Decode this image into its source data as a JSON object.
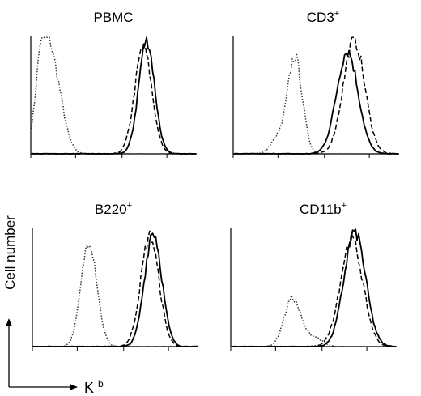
{
  "figure": {
    "ylabel": "Cell number",
    "xlabel_main": "K",
    "xlabel_sup": "b",
    "line_color": "#000000",
    "control_color": "#333333"
  },
  "chart_data": [
    {
      "type": "line",
      "title_main": "PBMC",
      "title_sup": "",
      "series": [
        {
          "style": "dotted",
          "peaks": [
            {
              "center": 0.12,
              "height": 0.82,
              "width": 0.06
            },
            {
              "center": 0.06,
              "height": 0.55,
              "width": 0.035
            }
          ]
        },
        {
          "style": "solid",
          "peaks": [
            {
              "center": 0.7,
              "height": 1.0,
              "width": 0.048
            }
          ]
        },
        {
          "style": "dashed",
          "peaks": [
            {
              "center": 0.68,
              "height": 0.93,
              "width": 0.052
            }
          ]
        }
      ]
    },
    {
      "type": "line",
      "title_main": "CD3",
      "title_sup": "+",
      "series": [
        {
          "style": "dotted",
          "peaks": [
            {
              "center": 0.37,
              "height": 0.85,
              "width": 0.045
            },
            {
              "center": 0.26,
              "height": 0.12,
              "width": 0.04
            }
          ]
        },
        {
          "style": "solid",
          "peaks": [
            {
              "center": 0.69,
              "height": 0.9,
              "width": 0.065
            }
          ]
        },
        {
          "style": "dashed",
          "peaks": [
            {
              "center": 0.73,
              "height": 1.0,
              "width": 0.065
            }
          ]
        }
      ]
    },
    {
      "type": "line",
      "title_main": "B220",
      "title_sup": "+",
      "series": [
        {
          "style": "dotted",
          "peaks": [
            {
              "center": 0.34,
              "height": 0.92,
              "width": 0.048
            }
          ]
        },
        {
          "style": "solid",
          "peaks": [
            {
              "center": 0.73,
              "height": 1.0,
              "width": 0.052
            }
          ]
        },
        {
          "style": "dashed",
          "peaks": [
            {
              "center": 0.71,
              "height": 0.96,
              "width": 0.055
            }
          ]
        }
      ]
    },
    {
      "type": "line",
      "title_main": "CD11b",
      "title_sup": "+",
      "series": [
        {
          "style": "dotted",
          "peaks": [
            {
              "center": 0.37,
              "height": 0.42,
              "width": 0.05
            },
            {
              "center": 0.5,
              "height": 0.08,
              "width": 0.05
            }
          ]
        },
        {
          "style": "solid",
          "peaks": [
            {
              "center": 0.75,
              "height": 1.0,
              "width": 0.065
            }
          ]
        },
        {
          "style": "dashed",
          "peaks": [
            {
              "center": 0.73,
              "height": 0.93,
              "width": 0.068
            }
          ]
        }
      ]
    }
  ]
}
